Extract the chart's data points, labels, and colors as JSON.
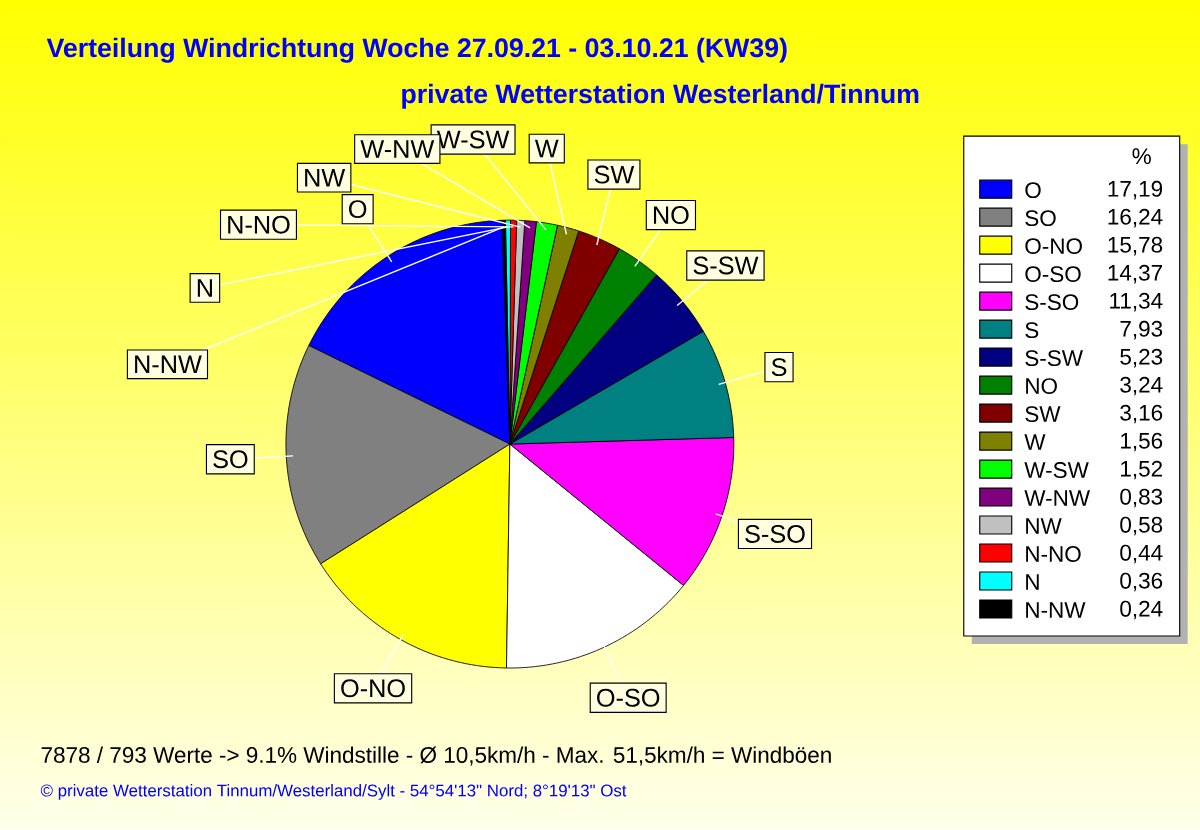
{
  "chart_data": {
    "type": "pie",
    "title": "Verteilung Windrichtung   Woche 27.09.21 - 03.10.21 (KW39)",
    "subtitle": "private Wetterstation Westerland/Tinnum",
    "legend_title": "%",
    "legend": "right",
    "categories": [
      "O",
      "SO",
      "O-NO",
      "O-SO",
      "S-SO",
      "S",
      "S-SW",
      "NO",
      "SW",
      "W",
      "W-SW",
      "W-NW",
      "NW",
      "N-NO",
      "N",
      "N-NW"
    ],
    "values": [
      17.19,
      16.24,
      15.78,
      14.37,
      11.34,
      7.93,
      5.23,
      3.24,
      3.16,
      1.56,
      1.52,
      0.83,
      0.58,
      0.44,
      0.36,
      0.24
    ],
    "value_labels": [
      "17,19",
      "16,24",
      "15,78",
      "14,37",
      "11,34",
      "7,93",
      "5,23",
      "3,24",
      "3,16",
      "1,56",
      "1,52",
      "0,83",
      "0,58",
      "0,44",
      "0,36",
      "0,24"
    ],
    "colors": [
      "#0000ff",
      "#808080",
      "#ffff00",
      "#ffffff",
      "#ff00ff",
      "#008080",
      "#000080",
      "#008000",
      "#800000",
      "#808000",
      "#00ff00",
      "#800080",
      "#c0c0c0",
      "#ff0000",
      "#00ffff",
      "#000000"
    ],
    "annotations": [
      "7878 / 793 Werte  -> 9.1% Windstille   -   Ø 10,5km/h  -  Max. 51,5km/h = Windböen",
      "© private Wetterstation Tinnum/Westerland/Sylt  -  54°54'13\" Nord; 8°19'13\" Ost"
    ]
  }
}
